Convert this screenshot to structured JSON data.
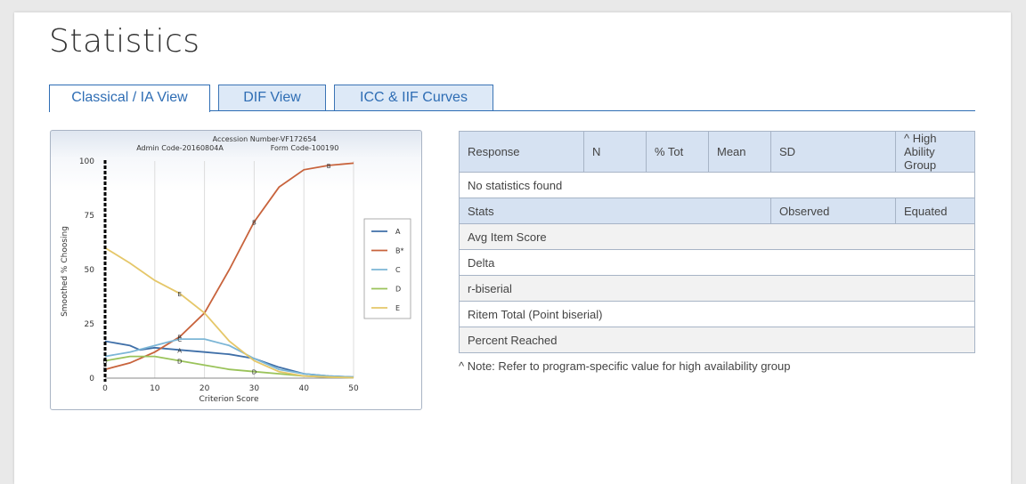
{
  "page": {
    "title": "Statistics"
  },
  "tabs": [
    {
      "label": "Classical / IA View",
      "active": true
    },
    {
      "label": "DIF View",
      "active": false
    },
    {
      "label": "ICC & IIF Curves",
      "active": false
    }
  ],
  "chart": {
    "header_line1": "Accession Number-VF172654",
    "header_line2": "Admin Code-20160804A",
    "header_line3": "Form Code-100190",
    "xlabel": "Criterion Score",
    "ylabel": "Smoothed % Choosing"
  },
  "chart_data": {
    "type": "line",
    "xlim": [
      0,
      50
    ],
    "ylim": [
      0,
      100
    ],
    "xticks": [
      0,
      10,
      20,
      30,
      40,
      50
    ],
    "yticks": [
      0,
      25,
      50,
      75,
      100
    ],
    "legend_position": "right",
    "series": [
      {
        "name": "A",
        "color": "#3f6fa8",
        "marker": "A",
        "markers_at": [
          15
        ],
        "points": [
          [
            0,
            17
          ],
          [
            5,
            15
          ],
          [
            7,
            13
          ],
          [
            10,
            14
          ],
          [
            15,
            13
          ],
          [
            20,
            12
          ],
          [
            25,
            11
          ],
          [
            30,
            9
          ],
          [
            35,
            5
          ],
          [
            40,
            2
          ],
          [
            45,
            1
          ],
          [
            50,
            0.5
          ]
        ]
      },
      {
        "name": "B*",
        "color": "#c8633c",
        "marker": "B",
        "markers_at": [
          0,
          15,
          30,
          45
        ],
        "points": [
          [
            0,
            4
          ],
          [
            5,
            7
          ],
          [
            10,
            12
          ],
          [
            15,
            19
          ],
          [
            20,
            30
          ],
          [
            25,
            50
          ],
          [
            30,
            72
          ],
          [
            35,
            88
          ],
          [
            40,
            96
          ],
          [
            45,
            98
          ],
          [
            50,
            99
          ]
        ]
      },
      {
        "name": "C",
        "color": "#7cb6d6",
        "marker": "C",
        "markers_at": [
          15
        ],
        "points": [
          [
            0,
            10
          ],
          [
            5,
            12
          ],
          [
            10,
            15
          ],
          [
            15,
            18
          ],
          [
            20,
            18
          ],
          [
            25,
            15
          ],
          [
            30,
            9
          ],
          [
            35,
            4
          ],
          [
            40,
            2
          ],
          [
            45,
            1
          ],
          [
            50,
            0.5
          ]
        ]
      },
      {
        "name": "D",
        "color": "#9ac35a",
        "marker": "D",
        "markers_at": [
          0,
          15,
          30
        ],
        "points": [
          [
            0,
            8
          ],
          [
            5,
            10
          ],
          [
            10,
            10
          ],
          [
            15,
            8
          ],
          [
            20,
            6
          ],
          [
            25,
            4
          ],
          [
            30,
            3
          ],
          [
            35,
            2
          ],
          [
            40,
            1
          ],
          [
            45,
            0.5
          ],
          [
            50,
            0.2
          ]
        ]
      },
      {
        "name": "E",
        "color": "#e5c769",
        "marker": "E",
        "markers_at": [
          15
        ],
        "points": [
          [
            0,
            60
          ],
          [
            5,
            53
          ],
          [
            10,
            45
          ],
          [
            15,
            39
          ],
          [
            20,
            30
          ],
          [
            25,
            17
          ],
          [
            30,
            8
          ],
          [
            35,
            3
          ],
          [
            40,
            1
          ],
          [
            45,
            0.5
          ],
          [
            50,
            0.2
          ]
        ]
      }
    ]
  },
  "table": {
    "headers": [
      "Response",
      "N",
      "% Tot",
      "Mean",
      "SD",
      "^ High Ability Group"
    ],
    "empty_message": "No statistics found",
    "stats_headers": [
      "Stats",
      "Observed",
      "Equated"
    ],
    "rows": [
      "Avg Item Score",
      "Delta",
      "r-biserial",
      "Ritem Total (Point biserial)",
      "Percent Reached"
    ]
  },
  "note": "^ Note: Refer to program-specific value for high availability group"
}
